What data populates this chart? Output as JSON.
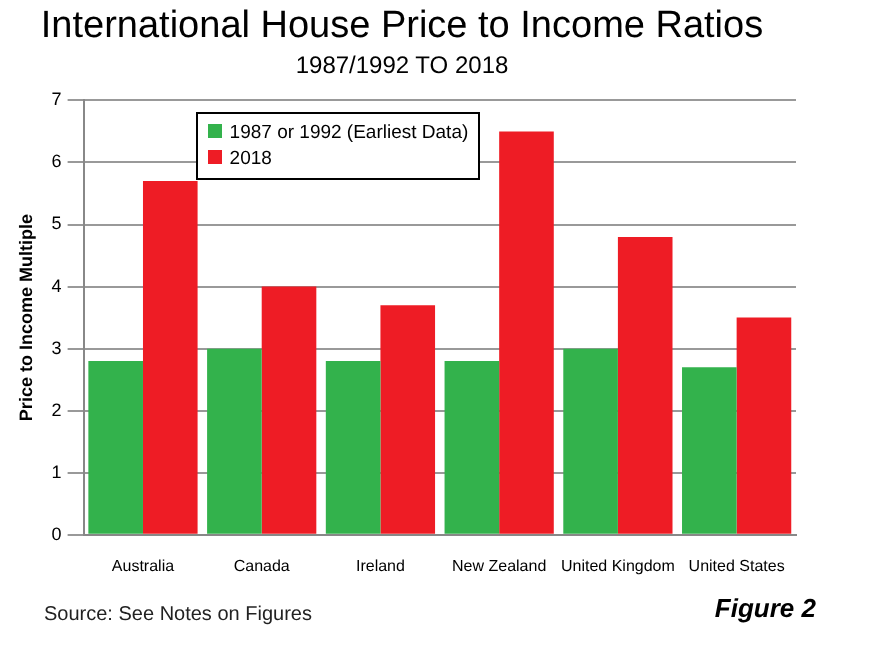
{
  "chart_data": {
    "type": "bar",
    "title": "International House Price to Income Ratios",
    "subtitle": "1987/1992 TO 2018",
    "ylabel": "Price to Income Multiple",
    "categories": [
      "Australia",
      "Canada",
      "Ireland",
      "New Zealand",
      "United Kingdom",
      "United States"
    ],
    "series": [
      {
        "name": "1987 or 1992 (Earliest Data)",
        "color": "#33b24c",
        "values": [
          2.8,
          3.0,
          2.8,
          2.8,
          3.0,
          2.7
        ]
      },
      {
        "name": "2018",
        "color": "#ee1c25",
        "values": [
          5.7,
          4.0,
          3.7,
          6.5,
          4.8,
          3.5
        ]
      }
    ],
    "ylim": [
      0,
      7
    ],
    "yticks": [
      0,
      1,
      2,
      3,
      4,
      5,
      6,
      7
    ],
    "grid": "y",
    "legend": "top left",
    "annotations": [
      "Source: See Notes on Figures",
      "Figure 2"
    ]
  }
}
